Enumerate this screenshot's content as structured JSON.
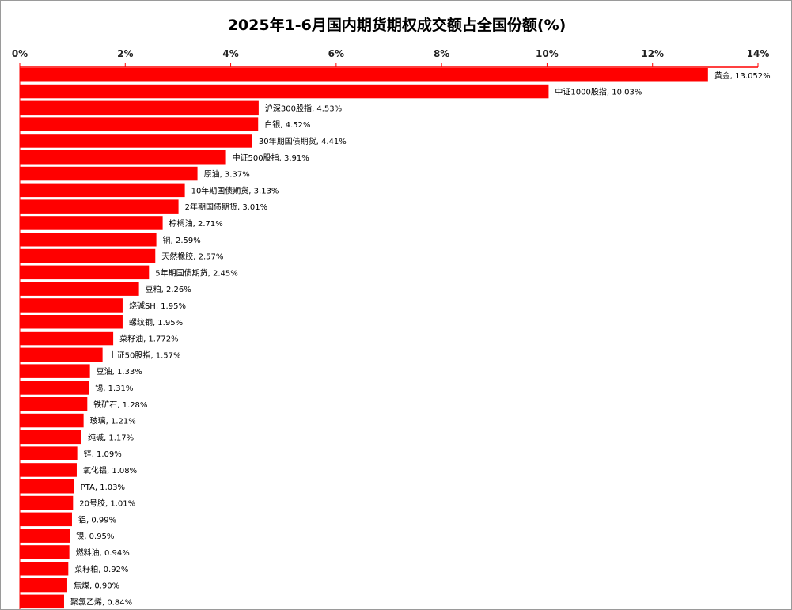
{
  "chart_data": {
    "type": "bar",
    "orientation": "horizontal",
    "title": "2025年1-6月国内期货期权成交额占全国份额(%)",
    "xlim": [
      0,
      14
    ],
    "x_ticks": [
      "0%",
      "2%",
      "4%",
      "6%",
      "8%",
      "10%",
      "12%",
      "14%"
    ],
    "x_tick_values": [
      0,
      2,
      4,
      6,
      8,
      10,
      12,
      14
    ],
    "x_axis_position": "top",
    "bar_color": "#ff0000",
    "categories": [
      "黄金",
      "中证1000股指",
      "沪深300股指",
      "白银",
      "30年期国债期货",
      "中证500股指",
      "原油",
      "10年期国债期货",
      "2年期国债期货",
      "棕榈油",
      "铜",
      "天然橡胶",
      "5年期国债期货",
      "豆粕",
      "烧碱SH",
      "螺纹钢",
      "菜籽油",
      "上证50股指",
      "豆油",
      "锡",
      "铁矿石",
      "玻璃",
      "纯碱",
      "锌",
      "氧化铝",
      "PTA",
      "20号胶",
      "铝",
      "镍",
      "燃料油",
      "菜籽粕",
      "焦煤",
      "聚氯乙烯"
    ],
    "values": [
      13.052,
      10.03,
      4.53,
      4.52,
      4.41,
      3.91,
      3.37,
      3.13,
      3.01,
      2.71,
      2.59,
      2.57,
      2.45,
      2.26,
      1.95,
      1.95,
      1.772,
      1.57,
      1.33,
      1.31,
      1.28,
      1.21,
      1.17,
      1.09,
      1.08,
      1.03,
      1.01,
      0.99,
      0.95,
      0.94,
      0.92,
      0.9,
      0.84
    ],
    "labels": [
      "黄金, 13.052%",
      "中证1000股指, 10.03%",
      "沪深300股指, 4.53%",
      "白银, 4.52%",
      "30年期国债期货, 4.41%",
      "中证500股指, 3.91%",
      "原油, 3.37%",
      "10年期国债期货, 3.13%",
      "2年期国债期货, 3.01%",
      "棕榈油, 2.71%",
      "铜, 2.59%",
      "天然橡胶, 2.57%",
      "5年期国债期货, 2.45%",
      "豆粕, 2.26%",
      "烧碱SH, 1.95%",
      "螺纹钢, 1.95%",
      "菜籽油, 1.772%",
      "上证50股指, 1.57%",
      "豆油, 1.33%",
      "锡, 1.31%",
      "铁矿石, 1.28%",
      "玻璃, 1.21%",
      "纯碱, 1.17%",
      "锌, 1.09%",
      "氧化铝, 1.08%",
      "PTA, 1.03%",
      "20号胶, 1.01%",
      "铝, 0.99%",
      "镍, 0.95%",
      "燃料油, 0.94%",
      "菜籽粕, 0.92%",
      "焦煤, 0.90%",
      "聚氯乙烯, 0.84%"
    ]
  }
}
